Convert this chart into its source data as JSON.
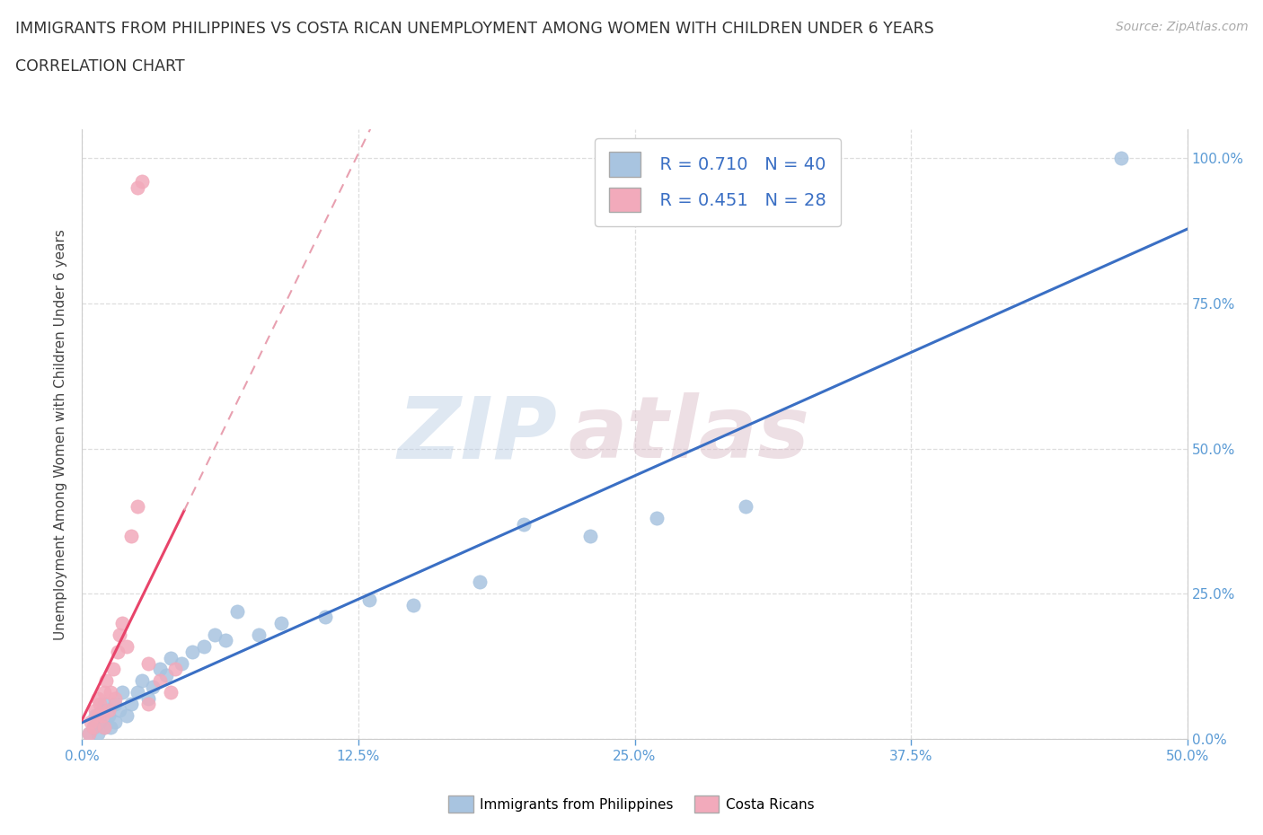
{
  "title_line1": "IMMIGRANTS FROM PHILIPPINES VS COSTA RICAN UNEMPLOYMENT AMONG WOMEN WITH CHILDREN UNDER 6 YEARS",
  "title_line2": "CORRELATION CHART",
  "source_text": "Source: ZipAtlas.com",
  "ylabel": "Unemployment Among Women with Children Under 6 years",
  "xlim": [
    0.0,
    0.5
  ],
  "ylim": [
    0.0,
    1.05
  ],
  "xtick_vals": [
    0.0,
    0.125,
    0.25,
    0.375,
    0.5
  ],
  "xtick_labels": [
    "0.0%",
    "12.5%",
    "25.0%",
    "37.5%",
    "50.0%"
  ],
  "ytick_vals": [
    0.0,
    0.25,
    0.5,
    0.75,
    1.0
  ],
  "right_ytick_labels": [
    "0.0%",
    "25.0%",
    "50.0%",
    "75.0%",
    "100.0%"
  ],
  "blue_color": "#A8C4E0",
  "pink_color": "#F2AABB",
  "blue_line_color": "#3A6FC4",
  "pink_line_color": "#E8446A",
  "pink_dash_color": "#E8A0B0",
  "legend_R1": "R = 0.710",
  "legend_N1": "N = 40",
  "legend_R2": "R = 0.451",
  "legend_N2": "N = 28",
  "watermark_top": "ZIP",
  "watermark_bot": "atlas",
  "blue_scatter_x": [
    0.003,
    0.005,
    0.006,
    0.007,
    0.008,
    0.009,
    0.01,
    0.01,
    0.012,
    0.013,
    0.015,
    0.015,
    0.017,
    0.018,
    0.02,
    0.022,
    0.025,
    0.027,
    0.03,
    0.032,
    0.035,
    0.038,
    0.04,
    0.045,
    0.05,
    0.055,
    0.06,
    0.065,
    0.07,
    0.08,
    0.09,
    0.11,
    0.13,
    0.15,
    0.18,
    0.2,
    0.23,
    0.26,
    0.3,
    0.47
  ],
  "blue_scatter_y": [
    0.01,
    0.02,
    0.04,
    0.01,
    0.03,
    0.05,
    0.02,
    0.06,
    0.04,
    0.02,
    0.03,
    0.06,
    0.05,
    0.08,
    0.04,
    0.06,
    0.08,
    0.1,
    0.07,
    0.09,
    0.12,
    0.11,
    0.14,
    0.13,
    0.15,
    0.16,
    0.18,
    0.17,
    0.22,
    0.18,
    0.2,
    0.21,
    0.24,
    0.23,
    0.27,
    0.37,
    0.35,
    0.38,
    0.4,
    1.0
  ],
  "pink_scatter_x": [
    0.003,
    0.004,
    0.005,
    0.006,
    0.007,
    0.007,
    0.008,
    0.009,
    0.01,
    0.01,
    0.011,
    0.012,
    0.013,
    0.014,
    0.015,
    0.016,
    0.017,
    0.018,
    0.02,
    0.022,
    0.025,
    0.025,
    0.027,
    0.03,
    0.03,
    0.035,
    0.04,
    0.042
  ],
  "pink_scatter_y": [
    0.01,
    0.03,
    0.02,
    0.05,
    0.04,
    0.07,
    0.06,
    0.04,
    0.08,
    0.02,
    0.1,
    0.05,
    0.08,
    0.12,
    0.07,
    0.15,
    0.18,
    0.2,
    0.16,
    0.35,
    0.4,
    0.95,
    0.96,
    0.06,
    0.13,
    0.1,
    0.08,
    0.12
  ],
  "background_color": "#FFFFFF",
  "grid_color": "#DEDEDE"
}
